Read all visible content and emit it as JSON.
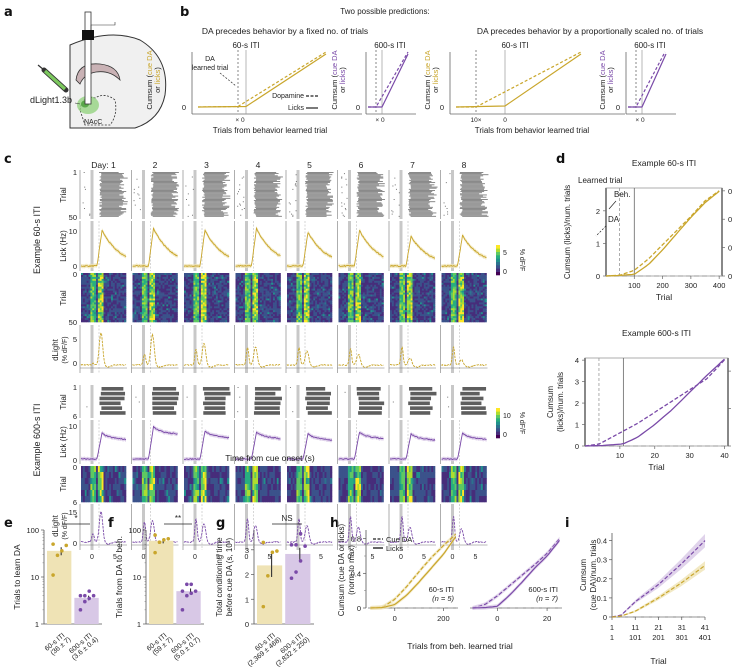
{
  "colors": {
    "gold": "#c9a62c",
    "purple": "#7a4aa8",
    "gold_fill": "#efe3b5",
    "purple_fill": "#d8c8e6",
    "gray": "#999999",
    "raster": "#555555"
  },
  "panels": {
    "a": {
      "label": "a",
      "virus_label": "dLight1.3b",
      "region_label": "NAcC"
    },
    "b": {
      "label": "b",
      "title": "Two possible predictions:",
      "left_title": "DA precedes behavior by a fixed no. of trials",
      "right_title": "DA precedes behavior by a proportionally scaled no. of trials",
      "iti60": "60-s ITI",
      "iti600": "600-s ITI",
      "ylabel_prefix": "Cumsum (",
      "ylabel_cue": "cue DA",
      "ylabel_or": "or ",
      "ylabel_licks": "licks",
      "ylabel_suffix": ")",
      "xlabel": "Trials from behavior learned trial",
      "zero": "0",
      "x_tick_fixed": "× 0",
      "x_tick_scaled": "10×",
      "x_tick_zero": "0",
      "annotation_line1": "DA",
      "annotation_line2": "learned trial",
      "legend_dopamine": "Dopamine",
      "legend_licks": "Licks"
    },
    "c": {
      "label": "c",
      "days": [
        "Day: 1",
        "2",
        "3",
        "4",
        "5",
        "6",
        "7",
        "8"
      ],
      "group60": "Example 60-s ITI",
      "group600": "Example 600-s ITI",
      "row_trial": "Trial",
      "row_lick": "Lick (Hz)",
      "row_dlight1": "dLight",
      "row_dlight2": "(% dF/F)",
      "raster60_ticks": [
        "1",
        "50"
      ],
      "lick60_ticks": [
        "10",
        "0"
      ],
      "heat60_ticks": [
        "0",
        "50"
      ],
      "dlight60_ticks": [
        "5",
        "0"
      ],
      "raster600_ticks": [
        "1",
        "6"
      ],
      "lick600_ticks": [
        "10",
        "0"
      ],
      "heat600_ticks": [
        "0",
        "6"
      ],
      "dlight600_ticks": [
        "15",
        "0"
      ],
      "cbar60": [
        "5",
        "0"
      ],
      "cbar600": [
        "10",
        "0"
      ],
      "cbar_label": "% dF/F",
      "time_ticks": [
        "0",
        "5"
      ],
      "xlabel": "Time from cue onset (s)"
    },
    "d": {
      "label": "d",
      "top_title": "Example  60-s ITI",
      "bottom_title": "Example 600-s ITI",
      "learned_trial": "Learned trial",
      "beh": "Beh.",
      "da": "DA",
      "top_ylabel_left": "Cumsum (licks)/num. trials",
      "bottom_ylabel_left1": "Cumsum",
      "bottom_ylabel_left2": "(licks)/num. trials",
      "ylabel_right": "Cumsum (cue DA)/num. trials",
      "xlabel": "Trial"
    },
    "e": {
      "label": "e",
      "sig": "*"
    },
    "f": {
      "label": "f",
      "sig": "**"
    },
    "g": {
      "label": "g",
      "sig": "NS"
    },
    "h": {
      "label": "h"
    },
    "i": {
      "label": "i"
    }
  },
  "chart_data": [
    {
      "id": "d_top",
      "type": "line",
      "title": "Example  60-s ITI",
      "xlabel": "Trial",
      "ylabel": "Cumsum (licks)/num. trials",
      "ylabel_right": "Cumsum (cue DA)/num. trials",
      "xlim": [
        0,
        410
      ],
      "ylim": [
        0,
        2.7
      ],
      "ylim_right": [
        0,
        0.31
      ],
      "xticks": [
        100,
        200,
        300,
        400
      ],
      "yticks": [
        0,
        1,
        2
      ],
      "yticks_right": [
        0,
        0.1,
        0.2,
        0.3
      ],
      "learned_trial_DA": 48,
      "learned_trial_beh": 100,
      "series": [
        {
          "name": "Licks",
          "style": "solid",
          "x": [
            0,
            50,
            100,
            150,
            200,
            250,
            300,
            350,
            400
          ],
          "y": [
            0,
            0.02,
            0.05,
            0.35,
            0.8,
            1.3,
            1.8,
            2.25,
            2.6
          ]
        },
        {
          "name": "Cue DA",
          "style": "dashed",
          "axis": "right",
          "x": [
            0,
            50,
            100,
            150,
            200,
            250,
            300,
            350,
            400
          ],
          "y": [
            0,
            0.003,
            0.02,
            0.06,
            0.11,
            0.16,
            0.21,
            0.265,
            0.3
          ]
        }
      ]
    },
    {
      "id": "d_bottom",
      "type": "line",
      "title": "Example 600-s ITI",
      "xlabel": "Trial",
      "ylabel": "Cumsum (licks)/num. trials",
      "ylabel_right": "Cumsum (cue DA)/num. trials",
      "xlim": [
        0,
        41
      ],
      "ylim": [
        0,
        4.1
      ],
      "ylim_right": [
        0,
        0.47
      ],
      "xticks": [
        10,
        20,
        30,
        40
      ],
      "yticks": [
        0,
        1,
        2,
        3,
        4
      ],
      "yticks_right": [
        0,
        0.2,
        0.4
      ],
      "learned_trial_DA": 4,
      "learned_trial_beh": 11,
      "series": [
        {
          "name": "Licks",
          "style": "solid",
          "x": [
            0,
            5,
            11,
            15,
            20,
            25,
            30,
            35,
            40
          ],
          "y": [
            0,
            0.02,
            0.1,
            0.4,
            1.0,
            1.7,
            2.5,
            3.3,
            4.05
          ]
        },
        {
          "name": "Cue DA",
          "style": "dashed",
          "axis": "right",
          "x": [
            0,
            4,
            10,
            15,
            20,
            25,
            30,
            35,
            40
          ],
          "y": [
            0,
            0.01,
            0.07,
            0.12,
            0.18,
            0.24,
            0.3,
            0.36,
            0.46
          ]
        }
      ]
    },
    {
      "id": "e",
      "type": "bar",
      "ylabel": "Trials to learn DA",
      "yscale": "log",
      "ylim": [
        1,
        100
      ],
      "yticks": [
        1,
        10,
        100
      ],
      "categories": [
        "60-s ITI (36 ± 7)",
        "600-s ITI (3.6 ± 0.4)"
      ],
      "values": [
        36,
        3.6
      ],
      "errors": [
        7,
        0.4
      ],
      "points": [
        [
          11,
          29,
          36,
          47,
          50
        ],
        [
          2,
          3,
          3.5,
          4,
          4,
          4,
          5
        ]
      ],
      "significance": "*"
    },
    {
      "id": "f",
      "type": "bar",
      "ylabel": "Trials from DA to beh.",
      "yscale": "log",
      "ylim": [
        1,
        100
      ],
      "yticks": [
        1,
        10,
        100
      ],
      "categories": [
        "60-s ITI (59 ± 7)",
        "600-s ITI (5.0 ± 0.7)"
      ],
      "values": [
        59,
        5.0
      ],
      "errors": [
        7,
        0.7
      ],
      "points": [
        [
          33,
          55,
          62,
          65,
          78
        ],
        [
          2,
          4,
          4.5,
          5,
          5,
          7,
          7
        ]
      ],
      "significance": "**"
    },
    {
      "id": "g",
      "type": "bar",
      "ylabel": "Total conditioning time before cue DA (s, 10^3)",
      "ylim": [
        0,
        3.8
      ],
      "yticks": [
        0,
        1,
        2,
        3
      ],
      "categories": [
        "60-s ITI (2,369 ± 468)",
        "600-s ITI (2,832 ± 250)"
      ],
      "values": [
        2.369,
        2.832
      ],
      "errors": [
        0.468,
        0.25
      ],
      "points": [
        [
          0.7,
          1.95,
          2.9,
          2.95,
          3.3
        ],
        [
          1.85,
          2.1,
          2.55,
          3.15,
          3.2,
          3.2,
          3.65
        ]
      ],
      "significance": "NS"
    },
    {
      "id": "h",
      "type": "line",
      "ylabel": "Cumsum (cue DA or licks) (norm to max)",
      "xlabel": "Trials from beh. learned trial",
      "ylim": [
        0,
        0.9
      ],
      "yticks": [
        0,
        0.4,
        0.8
      ],
      "legend": [
        "Cue DA",
        "Licks"
      ],
      "subplots": [
        {
          "name": "60-s ITI",
          "n": "(n = 5)",
          "xlim": [
            -110,
            260
          ],
          "xticks": [
            0,
            200
          ],
          "series": [
            {
              "name": "Cue DA",
              "style": "dashed",
              "x": [
                -100,
                -50,
                0,
                50,
                100,
                150,
                200,
                250
              ],
              "y": [
                0,
                0.01,
                0.1,
                0.25,
                0.42,
                0.58,
                0.72,
                0.85
              ]
            },
            {
              "name": "Licks",
              "style": "solid",
              "x": [
                -100,
                -50,
                0,
                50,
                100,
                150,
                200,
                250
              ],
              "y": [
                0,
                0.005,
                0.04,
                0.15,
                0.3,
                0.46,
                0.62,
                0.82
              ]
            }
          ]
        },
        {
          "name": "600-s ITI",
          "n": "(n = 7)",
          "xlim": [
            -11,
            26
          ],
          "xticks": [
            0,
            20
          ],
          "series": [
            {
              "name": "Cue DA",
              "style": "dashed",
              "x": [
                -10,
                -5,
                0,
                5,
                10,
                15,
                20,
                25
              ],
              "y": [
                0,
                0.04,
                0.14,
                0.26,
                0.38,
                0.5,
                0.63,
                0.8
              ]
            },
            {
              "name": "Licks",
              "style": "solid",
              "x": [
                -10,
                -5,
                0,
                5,
                10,
                15,
                20,
                25
              ],
              "y": [
                0,
                0.005,
                0.02,
                0.15,
                0.3,
                0.46,
                0.6,
                0.78
              ]
            }
          ]
        }
      ]
    },
    {
      "id": "i",
      "type": "line",
      "ylabel": "Cumsum (cue DA)/num. trials",
      "xlabel": "Trial",
      "ylim": [
        0,
        0.44
      ],
      "yticks": [
        0,
        0.1,
        0.2,
        0.3,
        0.4
      ],
      "xticks_purple": [
        "1",
        "11",
        "21",
        "31",
        "41"
      ],
      "xticks_gold": [
        "1",
        "101",
        "201",
        "301",
        "401"
      ],
      "series": [
        {
          "name": "600-s ITI",
          "style": "dashed",
          "x": [
            0,
            0.1,
            0.25,
            0.5,
            0.75,
            1.0
          ],
          "y": [
            0,
            0.01,
            0.08,
            0.17,
            0.28,
            0.4
          ]
        },
        {
          "name": "60-s ITI",
          "style": "dashed",
          "x": [
            0,
            0.1,
            0.25,
            0.5,
            0.75,
            1.0
          ],
          "y": [
            0,
            0.005,
            0.03,
            0.1,
            0.18,
            0.27
          ]
        }
      ]
    }
  ]
}
